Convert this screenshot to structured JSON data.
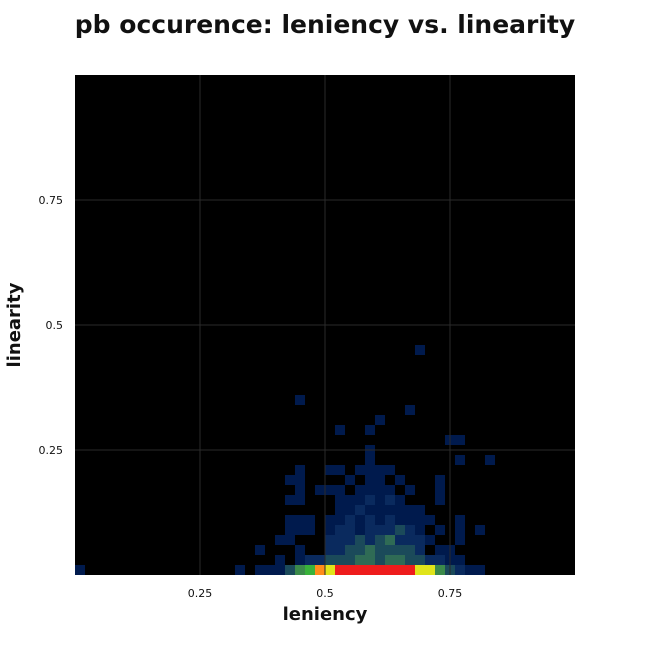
{
  "chart_data": {
    "type": "heatmap",
    "title": "pb occurence: leniency vs. linearity",
    "xlabel": "leniency",
    "ylabel": "linearity",
    "xlim": [
      0,
      1
    ],
    "ylim": [
      0,
      1
    ],
    "bin_size": 0.02,
    "grid": true,
    "background_color": "#000000",
    "grid_color": "#2a2a2a",
    "x_ticks": [
      {
        "value": 0.25,
        "label": "0.25"
      },
      {
        "value": 0.5,
        "label": "0.5"
      },
      {
        "value": 0.75,
        "label": "0.75"
      }
    ],
    "y_ticks": [
      {
        "value": 0.25,
        "label": "0.25"
      },
      {
        "value": 0.5,
        "label": "0.5"
      },
      {
        "value": 0.75,
        "label": "0.75"
      }
    ],
    "color_scale": {
      "c1": "#001a4d",
      "c2": "#0a2a5e",
      "c3": "#1b4a5a",
      "c4": "#2f6b55",
      "c5": "#3b8a4a",
      "c6": "#38b23a",
      "c7": "#e0e41a",
      "c8": "#ff8c1a",
      "c9": "#ee1c1c"
    },
    "cells": [
      {
        "x": 0.0,
        "y": 0.0,
        "c": "c1"
      },
      {
        "x": 0.32,
        "y": 0.0,
        "c": "c1"
      },
      {
        "x": 0.36,
        "y": 0.0,
        "c": "c1"
      },
      {
        "x": 0.38,
        "y": 0.0,
        "c": "c1"
      },
      {
        "x": 0.4,
        "y": 0.0,
        "c": "c1"
      },
      {
        "x": 0.42,
        "y": 0.0,
        "c": "c3"
      },
      {
        "x": 0.44,
        "y": 0.0,
        "c": "c5"
      },
      {
        "x": 0.46,
        "y": 0.0,
        "c": "c6"
      },
      {
        "x": 0.48,
        "y": 0.0,
        "c": "c8"
      },
      {
        "x": 0.5,
        "y": 0.0,
        "c": "c7"
      },
      {
        "x": 0.52,
        "y": 0.0,
        "c": "c9"
      },
      {
        "x": 0.54,
        "y": 0.0,
        "c": "c9"
      },
      {
        "x": 0.56,
        "y": 0.0,
        "c": "c9"
      },
      {
        "x": 0.58,
        "y": 0.0,
        "c": "c9"
      },
      {
        "x": 0.6,
        "y": 0.0,
        "c": "c9"
      },
      {
        "x": 0.62,
        "y": 0.0,
        "c": "c9"
      },
      {
        "x": 0.64,
        "y": 0.0,
        "c": "c9"
      },
      {
        "x": 0.66,
        "y": 0.0,
        "c": "c9"
      },
      {
        "x": 0.68,
        "y": 0.0,
        "c": "c7"
      },
      {
        "x": 0.7,
        "y": 0.0,
        "c": "c7"
      },
      {
        "x": 0.72,
        "y": 0.0,
        "c": "c5"
      },
      {
        "x": 0.74,
        "y": 0.0,
        "c": "c3"
      },
      {
        "x": 0.76,
        "y": 0.0,
        "c": "c2"
      },
      {
        "x": 0.78,
        "y": 0.0,
        "c": "c1"
      },
      {
        "x": 0.8,
        "y": 0.0,
        "c": "c1"
      },
      {
        "x": 0.4,
        "y": 0.02,
        "c": "c1"
      },
      {
        "x": 0.44,
        "y": 0.02,
        "c": "c1"
      },
      {
        "x": 0.46,
        "y": 0.02,
        "c": "c2"
      },
      {
        "x": 0.48,
        "y": 0.02,
        "c": "c2"
      },
      {
        "x": 0.5,
        "y": 0.02,
        "c": "c3"
      },
      {
        "x": 0.52,
        "y": 0.02,
        "c": "c3"
      },
      {
        "x": 0.54,
        "y": 0.02,
        "c": "c3"
      },
      {
        "x": 0.56,
        "y": 0.02,
        "c": "c4"
      },
      {
        "x": 0.58,
        "y": 0.02,
        "c": "c4"
      },
      {
        "x": 0.6,
        "y": 0.02,
        "c": "c3"
      },
      {
        "x": 0.62,
        "y": 0.02,
        "c": "c4"
      },
      {
        "x": 0.64,
        "y": 0.02,
        "c": "c4"
      },
      {
        "x": 0.66,
        "y": 0.02,
        "c": "c3"
      },
      {
        "x": 0.68,
        "y": 0.02,
        "c": "c3"
      },
      {
        "x": 0.7,
        "y": 0.02,
        "c": "c2"
      },
      {
        "x": 0.72,
        "y": 0.02,
        "c": "c2"
      },
      {
        "x": 0.74,
        "y": 0.02,
        "c": "c1"
      },
      {
        "x": 0.76,
        "y": 0.02,
        "c": "c1"
      },
      {
        "x": 0.36,
        "y": 0.04,
        "c": "c1"
      },
      {
        "x": 0.44,
        "y": 0.04,
        "c": "c1"
      },
      {
        "x": 0.5,
        "y": 0.04,
        "c": "c2"
      },
      {
        "x": 0.52,
        "y": 0.04,
        "c": "c2"
      },
      {
        "x": 0.54,
        "y": 0.04,
        "c": "c3"
      },
      {
        "x": 0.56,
        "y": 0.04,
        "c": "c3"
      },
      {
        "x": 0.58,
        "y": 0.04,
        "c": "c4"
      },
      {
        "x": 0.6,
        "y": 0.04,
        "c": "c3"
      },
      {
        "x": 0.62,
        "y": 0.04,
        "c": "c3"
      },
      {
        "x": 0.64,
        "y": 0.04,
        "c": "c3"
      },
      {
        "x": 0.66,
        "y": 0.04,
        "c": "c3"
      },
      {
        "x": 0.68,
        "y": 0.04,
        "c": "c2"
      },
      {
        "x": 0.72,
        "y": 0.04,
        "c": "c1"
      },
      {
        "x": 0.74,
        "y": 0.04,
        "c": "c1"
      },
      {
        "x": 0.4,
        "y": 0.06,
        "c": "c1"
      },
      {
        "x": 0.42,
        "y": 0.06,
        "c": "c1"
      },
      {
        "x": 0.5,
        "y": 0.06,
        "c": "c2"
      },
      {
        "x": 0.52,
        "y": 0.06,
        "c": "c2"
      },
      {
        "x": 0.54,
        "y": 0.06,
        "c": "c2"
      },
      {
        "x": 0.56,
        "y": 0.06,
        "c": "c3"
      },
      {
        "x": 0.58,
        "y": 0.06,
        "c": "c2"
      },
      {
        "x": 0.6,
        "y": 0.06,
        "c": "c3"
      },
      {
        "x": 0.62,
        "y": 0.06,
        "c": "c4"
      },
      {
        "x": 0.64,
        "y": 0.06,
        "c": "c2"
      },
      {
        "x": 0.66,
        "y": 0.06,
        "c": "c2"
      },
      {
        "x": 0.68,
        "y": 0.06,
        "c": "c2"
      },
      {
        "x": 0.7,
        "y": 0.06,
        "c": "c1"
      },
      {
        "x": 0.76,
        "y": 0.06,
        "c": "c1"
      },
      {
        "x": 0.42,
        "y": 0.08,
        "c": "c1"
      },
      {
        "x": 0.44,
        "y": 0.08,
        "c": "c1"
      },
      {
        "x": 0.46,
        "y": 0.08,
        "c": "c1"
      },
      {
        "x": 0.5,
        "y": 0.08,
        "c": "c1"
      },
      {
        "x": 0.52,
        "y": 0.08,
        "c": "c2"
      },
      {
        "x": 0.54,
        "y": 0.08,
        "c": "c2"
      },
      {
        "x": 0.56,
        "y": 0.08,
        "c": "c1"
      },
      {
        "x": 0.58,
        "y": 0.08,
        "c": "c2"
      },
      {
        "x": 0.6,
        "y": 0.08,
        "c": "c2"
      },
      {
        "x": 0.62,
        "y": 0.08,
        "c": "c2"
      },
      {
        "x": 0.64,
        "y": 0.08,
        "c": "c3"
      },
      {
        "x": 0.66,
        "y": 0.08,
        "c": "c2"
      },
      {
        "x": 0.68,
        "y": 0.08,
        "c": "c1"
      },
      {
        "x": 0.72,
        "y": 0.08,
        "c": "c1"
      },
      {
        "x": 0.76,
        "y": 0.08,
        "c": "c1"
      },
      {
        "x": 0.8,
        "y": 0.08,
        "c": "c1"
      },
      {
        "x": 0.42,
        "y": 0.1,
        "c": "c1"
      },
      {
        "x": 0.44,
        "y": 0.1,
        "c": "c1"
      },
      {
        "x": 0.46,
        "y": 0.1,
        "c": "c1"
      },
      {
        "x": 0.5,
        "y": 0.1,
        "c": "c1"
      },
      {
        "x": 0.52,
        "y": 0.1,
        "c": "c1"
      },
      {
        "x": 0.54,
        "y": 0.1,
        "c": "c2"
      },
      {
        "x": 0.56,
        "y": 0.1,
        "c": "c1"
      },
      {
        "x": 0.58,
        "y": 0.1,
        "c": "c2"
      },
      {
        "x": 0.6,
        "y": 0.1,
        "c": "c1"
      },
      {
        "x": 0.62,
        "y": 0.1,
        "c": "c2"
      },
      {
        "x": 0.64,
        "y": 0.1,
        "c": "c1"
      },
      {
        "x": 0.66,
        "y": 0.1,
        "c": "c1"
      },
      {
        "x": 0.68,
        "y": 0.1,
        "c": "c1"
      },
      {
        "x": 0.7,
        "y": 0.1,
        "c": "c1"
      },
      {
        "x": 0.76,
        "y": 0.1,
        "c": "c1"
      },
      {
        "x": 0.52,
        "y": 0.12,
        "c": "c1"
      },
      {
        "x": 0.54,
        "y": 0.12,
        "c": "c1"
      },
      {
        "x": 0.56,
        "y": 0.12,
        "c": "c2"
      },
      {
        "x": 0.58,
        "y": 0.12,
        "c": "c1"
      },
      {
        "x": 0.6,
        "y": 0.12,
        "c": "c1"
      },
      {
        "x": 0.62,
        "y": 0.12,
        "c": "c1"
      },
      {
        "x": 0.64,
        "y": 0.12,
        "c": "c1"
      },
      {
        "x": 0.66,
        "y": 0.12,
        "c": "c1"
      },
      {
        "x": 0.68,
        "y": 0.12,
        "c": "c1"
      },
      {
        "x": 0.42,
        "y": 0.14,
        "c": "c1"
      },
      {
        "x": 0.44,
        "y": 0.14,
        "c": "c1"
      },
      {
        "x": 0.52,
        "y": 0.14,
        "c": "c1"
      },
      {
        "x": 0.54,
        "y": 0.14,
        "c": "c1"
      },
      {
        "x": 0.56,
        "y": 0.14,
        "c": "c1"
      },
      {
        "x": 0.58,
        "y": 0.14,
        "c": "c2"
      },
      {
        "x": 0.6,
        "y": 0.14,
        "c": "c1"
      },
      {
        "x": 0.62,
        "y": 0.14,
        "c": "c2"
      },
      {
        "x": 0.64,
        "y": 0.14,
        "c": "c1"
      },
      {
        "x": 0.72,
        "y": 0.14,
        "c": "c1"
      },
      {
        "x": 0.44,
        "y": 0.16,
        "c": "c1"
      },
      {
        "x": 0.48,
        "y": 0.16,
        "c": "c1"
      },
      {
        "x": 0.5,
        "y": 0.16,
        "c": "c1"
      },
      {
        "x": 0.52,
        "y": 0.16,
        "c": "c1"
      },
      {
        "x": 0.56,
        "y": 0.16,
        "c": "c1"
      },
      {
        "x": 0.58,
        "y": 0.16,
        "c": "c1"
      },
      {
        "x": 0.6,
        "y": 0.16,
        "c": "c1"
      },
      {
        "x": 0.62,
        "y": 0.16,
        "c": "c1"
      },
      {
        "x": 0.66,
        "y": 0.16,
        "c": "c1"
      },
      {
        "x": 0.72,
        "y": 0.16,
        "c": "c1"
      },
      {
        "x": 0.42,
        "y": 0.18,
        "c": "c1"
      },
      {
        "x": 0.44,
        "y": 0.18,
        "c": "c1"
      },
      {
        "x": 0.54,
        "y": 0.18,
        "c": "c1"
      },
      {
        "x": 0.58,
        "y": 0.18,
        "c": "c1"
      },
      {
        "x": 0.6,
        "y": 0.18,
        "c": "c1"
      },
      {
        "x": 0.64,
        "y": 0.18,
        "c": "c1"
      },
      {
        "x": 0.72,
        "y": 0.18,
        "c": "c1"
      },
      {
        "x": 0.44,
        "y": 0.2,
        "c": "c1"
      },
      {
        "x": 0.5,
        "y": 0.2,
        "c": "c1"
      },
      {
        "x": 0.52,
        "y": 0.2,
        "c": "c1"
      },
      {
        "x": 0.56,
        "y": 0.2,
        "c": "c1"
      },
      {
        "x": 0.58,
        "y": 0.2,
        "c": "c1"
      },
      {
        "x": 0.6,
        "y": 0.2,
        "c": "c1"
      },
      {
        "x": 0.62,
        "y": 0.2,
        "c": "c1"
      },
      {
        "x": 0.58,
        "y": 0.22,
        "c": "c1"
      },
      {
        "x": 0.76,
        "y": 0.22,
        "c": "c1"
      },
      {
        "x": 0.82,
        "y": 0.22,
        "c": "c1"
      },
      {
        "x": 0.58,
        "y": 0.24,
        "c": "c1"
      },
      {
        "x": 0.74,
        "y": 0.26,
        "c": "c1"
      },
      {
        "x": 0.76,
        "y": 0.26,
        "c": "c1"
      },
      {
        "x": 0.52,
        "y": 0.28,
        "c": "c1"
      },
      {
        "x": 0.58,
        "y": 0.28,
        "c": "c1"
      },
      {
        "x": 0.6,
        "y": 0.3,
        "c": "c1"
      },
      {
        "x": 0.66,
        "y": 0.32,
        "c": "c1"
      },
      {
        "x": 0.44,
        "y": 0.34,
        "c": "c1"
      },
      {
        "x": 0.68,
        "y": 0.44,
        "c": "c1"
      }
    ]
  }
}
